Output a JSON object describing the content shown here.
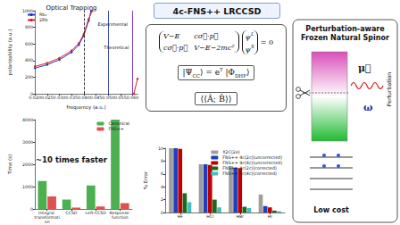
{
  "header": {
    "title": "4c-FNS++ LRCCSD"
  },
  "equations": {
    "dirac": {
      "matrix": [
        [
          "V−E",
          "cσ⃗·p⃗"
        ],
        [
          "cσ⃗·p⃗",
          "V−E−2mc²"
        ]
      ],
      "vector": [
        [
          {
            "t": "ψ"
          },
          {
            "sup": "L"
          }
        ],
        [
          {
            "t": "ψ"
          },
          {
            "sup": "S"
          }
        ]
      ],
      "rhs": "= 0"
    },
    "cc": [
      {
        "t": "|Ψ"
      },
      {
        "sub": "CC"
      },
      {
        "t": "⟩ = e"
      },
      {
        "sup": "T"
      },
      {
        "t": " |Φ"
      },
      {
        "sub": "DHF"
      },
      {
        "t": "⟩"
      }
    ],
    "response": "⟨⟨Â; B̂⟩⟩"
  },
  "panel": {
    "title": [
      "Perturbation-aware",
      "Frozen Natural Spinor"
    ],
    "mu": "μ⃗",
    "omega": "ω",
    "perturbation": "Perturbation",
    "footer": "Low cost"
  },
  "chart_data": [
    {
      "type": "line",
      "title": "Optical Trapping",
      "x_label": "frequency (a.u.)",
      "y_label": "polarizability (a.u.)",
      "xlim": [
        0.02,
        0.062
      ],
      "xticks": [
        {
          "value": 0.02,
          "label": "0.020"
        },
        {
          "value": 0.025,
          "label": "0.025"
        },
        {
          "value": 0.03,
          "label": "0.030"
        },
        {
          "value": 0.035,
          "label": "0.035"
        },
        {
          "value": 0.04,
          "label": "0.040"
        },
        {
          "value": 0.045,
          "label": "0.045"
        },
        {
          "value": 0.05,
          "label": "0.050"
        },
        {
          "value": 0.055,
          "label": "0.055"
        },
        {
          "value": 0.06,
          "label": "0.060"
        }
      ],
      "ylim": [
        0,
        1000
      ],
      "yticks": [
        0,
        200,
        400,
        600,
        800,
        1000
      ],
      "grid": false,
      "legend": "top-left",
      "series": [
        {
          "name": "Rb₂",
          "color": "#2233cc",
          "marker": "circle",
          "line_style": "solid",
          "x": [
            0.02,
            0.025,
            0.03,
            0.035,
            0.038,
            0.04,
            0.042,
            0.043
          ],
          "values": [
            310,
            350,
            410,
            500,
            590,
            700,
            880,
            1000
          ]
        },
        {
          "name": "2Rb",
          "color": "#dd2222",
          "marker": "circle",
          "line_style": "solid",
          "x": [
            0.02,
            0.025,
            0.03,
            0.035,
            0.038,
            0.04,
            0.042,
            0.0435,
            0.05,
            0.0605,
            0.062
          ],
          "values": [
            330,
            370,
            430,
            520,
            610,
            720,
            900,
            1000,
            null,
            0,
            180
          ]
        }
      ],
      "vlines": [
        {
          "x": 0.045,
          "color": "#000000",
          "line_style": "dashed"
        },
        {
          "x": 0.0475,
          "color": "#22aa22",
          "line_style": "solid"
        },
        {
          "x": 0.0525,
          "color": "#3333cc",
          "line_style": "solid"
        },
        {
          "x": 0.056,
          "color": "#3333cc",
          "line_style": "solid"
        },
        {
          "x": 0.058,
          "color": "#9933cc",
          "line_style": "solid"
        }
      ],
      "annotations": [
        {
          "text": "Experimental",
          "x": 0.045,
          "y": 840
        },
        {
          "text": "Theoretical",
          "x": 0.0475,
          "y": 560
        }
      ]
    },
    {
      "type": "bar",
      "y_label": "Time (s)",
      "categories": [
        "Integral transformation",
        "CCSD",
        "Left-CCSD",
        "Response function"
      ],
      "ylim": [
        0,
        4000
      ],
      "yticks": [
        0,
        1000,
        2000,
        3000,
        4000
      ],
      "grid": false,
      "legend": "top-right",
      "annotation": "~10 times faster",
      "series": [
        {
          "name": "Canonical",
          "color": "#4caf50",
          "values": [
            1250,
            420,
            1050,
            4000
          ]
        },
        {
          "name": "FNS++",
          "color": "#e05050",
          "values": [
            560,
            60,
            110,
            260
          ]
        }
      ]
    },
    {
      "type": "bar",
      "y_label": "% Error",
      "categories": [
        "HF",
        "HCl",
        "HBr",
        "HI"
      ],
      "ylim": [
        0,
        10
      ],
      "yticks": [
        0,
        2,
        4,
        6,
        8,
        10
      ],
      "grid": false,
      "legend": "top-right",
      "series": [
        {
          "name": "X2C(2e)",
          "color": "#9e9e9e",
          "values": [
            10,
            7.5,
            7.2,
            2.8
          ]
        },
        {
          "name": "FNS++ 4c(2c)(uncorrected)",
          "color": "#1f3fbf",
          "values": [
            10,
            7.5,
            7.0,
            1.0
          ]
        },
        {
          "name": "FNS++ 4c(4c)(uncorrected)",
          "color": "#c00000",
          "values": [
            9.9,
            7.4,
            6.9,
            0.8
          ]
        },
        {
          "name": "FNS++ 4c(2c)(corrected)",
          "color": "#1a6b1a",
          "values": [
            3.0,
            2.0,
            0.9,
            0.3
          ]
        },
        {
          "name": "FNS++ 4c(4c)(corrected)",
          "color": "#40c0c0",
          "values": [
            1.6,
            0.8,
            0.7,
            0.2
          ]
        }
      ]
    }
  ]
}
